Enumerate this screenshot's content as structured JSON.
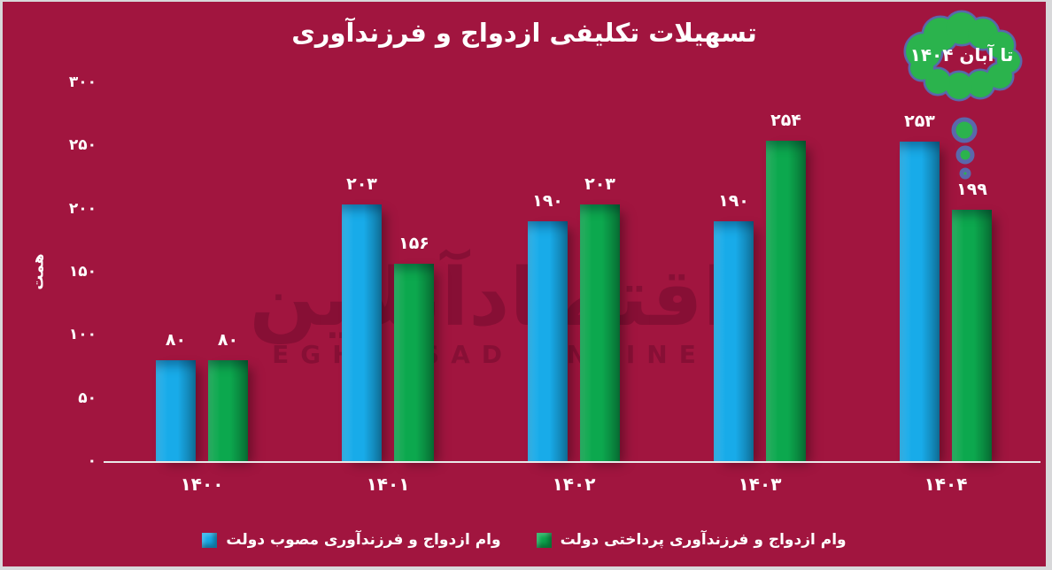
{
  "title": "تسهیلات تکلیفی ازدواج و فرزندآوری",
  "badge": {
    "text": "تا آبان ۱۴۰۴"
  },
  "watermark": {
    "fa": "اقتصادآنلاین",
    "en": "EGHTESAD ONLINE"
  },
  "colors": {
    "background": "#A1153F",
    "bar_blue": "#18ABE9",
    "bar_green": "#0CA84E",
    "cloud_green": "#2BB34D",
    "cloud_outline": "#5A68AB",
    "axis_line": "#E9E9E9",
    "text": "#FFFFFF"
  },
  "chart_data": {
    "type": "bar",
    "title": "تسهیلات تکلیفی ازدواج و فرزندآوری",
    "categories": [
      "۱۴۰۰",
      "۱۴۰۱",
      "۱۴۰۲",
      "۱۴۰۳",
      "۱۴۰۴"
    ],
    "series": [
      {
        "name": "وام ازدواج و فرزندآوری مصوب دولت",
        "color": "#18ABE9",
        "values": [
          80,
          203,
          190,
          190,
          253
        ],
        "value_labels": [
          "۸۰",
          "۲۰۳",
          "۱۹۰",
          "۱۹۰",
          "۲۵۳"
        ]
      },
      {
        "name": "وام ازدواج و فرزندآوری پرداختی دولت",
        "color": "#0CA84E",
        "values": [
          80,
          156,
          203,
          254,
          199
        ],
        "value_labels": [
          "۸۰",
          "۱۵۶",
          "۲۰۳",
          "۲۵۴",
          "۱۹۹"
        ]
      }
    ],
    "xlabel": "",
    "ylabel": "همت",
    "ylim": [
      0,
      300
    ],
    "yticks": [
      0,
      50,
      100,
      150,
      200,
      250,
      300
    ],
    "ytick_labels": [
      "۰",
      "۵۰",
      "۱۰۰",
      "۱۵۰",
      "۲۰۰",
      "۲۵۰",
      "۳۰۰"
    ],
    "grid": false,
    "legend_position": "bottom",
    "annotation": "تا آبان ۱۴۰۴"
  },
  "legend": {
    "items": [
      {
        "label": "وام ازدواج و فرزندآوری مصوب دولت",
        "color": "#18ABE9"
      },
      {
        "label": "وام ازدواج و فرزندآوری پرداختی دولت",
        "color": "#0CA84E"
      }
    ]
  }
}
